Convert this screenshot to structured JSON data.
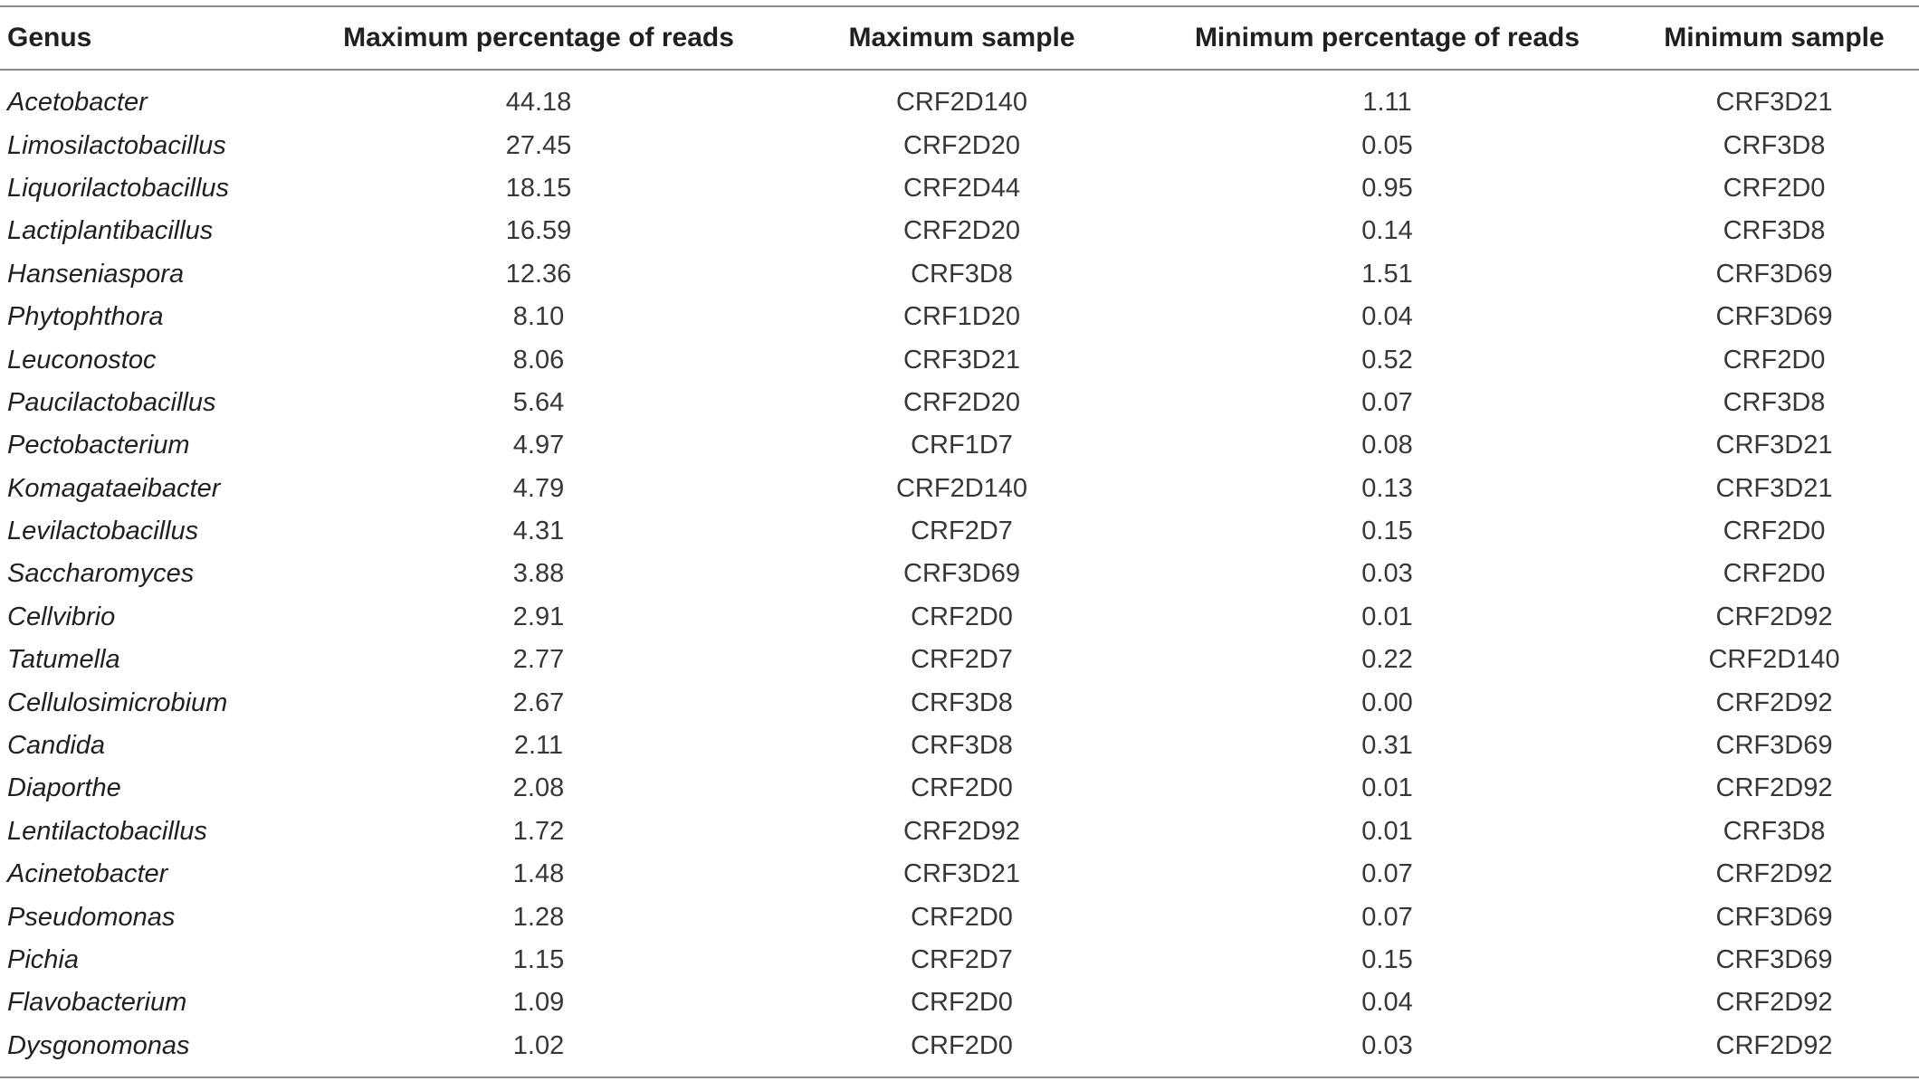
{
  "table": {
    "headers": [
      "Genus",
      "Maximum percentage of reads",
      "Maximum sample",
      "Minimum percentage of reads",
      "Minimum sample"
    ],
    "rows": [
      [
        "Acetobacter",
        "44.18",
        "CRF2D140",
        "1.11",
        "CRF3D21"
      ],
      [
        "Limosilactobacillus",
        "27.45",
        "CRF2D20",
        "0.05",
        "CRF3D8"
      ],
      [
        "Liquorilactobacillus",
        "18.15",
        "CRF2D44",
        "0.95",
        "CRF2D0"
      ],
      [
        "Lactiplantibacillus",
        "16.59",
        "CRF2D20",
        "0.14",
        "CRF3D8"
      ],
      [
        "Hanseniaspora",
        "12.36",
        "CRF3D8",
        "1.51",
        "CRF3D69"
      ],
      [
        "Phytophthora",
        "8.10",
        "CRF1D20",
        "0.04",
        "CRF3D69"
      ],
      [
        "Leuconostoc",
        "8.06",
        "CRF3D21",
        "0.52",
        "CRF2D0"
      ],
      [
        "Paucilactobacillus",
        "5.64",
        "CRF2D20",
        "0.07",
        "CRF3D8"
      ],
      [
        "Pectobacterium",
        "4.97",
        "CRF1D7",
        "0.08",
        "CRF3D21"
      ],
      [
        "Komagataeibacter",
        "4.79",
        "CRF2D140",
        "0.13",
        "CRF3D21"
      ],
      [
        "Levilactobacillus",
        "4.31",
        "CRF2D7",
        "0.15",
        "CRF2D0"
      ],
      [
        "Saccharomyces",
        "3.88",
        "CRF3D69",
        "0.03",
        "CRF2D0"
      ],
      [
        "Cellvibrio",
        "2.91",
        "CRF2D0",
        "0.01",
        "CRF2D92"
      ],
      [
        "Tatumella",
        "2.77",
        "CRF2D7",
        "0.22",
        "CRF2D140"
      ],
      [
        "Cellulosimicrobium",
        "2.67",
        "CRF3D8",
        "0.00",
        "CRF2D92"
      ],
      [
        "Candida",
        "2.11",
        "CRF3D8",
        "0.31",
        "CRF3D69"
      ],
      [
        "Diaporthe",
        "2.08",
        "CRF2D0",
        "0.01",
        "CRF2D92"
      ],
      [
        "Lentilactobacillus",
        "1.72",
        "CRF2D92",
        "0.01",
        "CRF3D8"
      ],
      [
        "Acinetobacter",
        "1.48",
        "CRF3D21",
        "0.07",
        "CRF2D92"
      ],
      [
        "Pseudomonas",
        "1.28",
        "CRF2D0",
        "0.07",
        "CRF3D69"
      ],
      [
        "Pichia",
        "1.15",
        "CRF2D7",
        "0.15",
        "CRF3D69"
      ],
      [
        "Flavobacterium",
        "1.09",
        "CRF2D0",
        "0.04",
        "CRF2D92"
      ],
      [
        "Dysgonomonas",
        "1.02",
        "CRF2D0",
        "0.03",
        "CRF2D92"
      ]
    ]
  }
}
